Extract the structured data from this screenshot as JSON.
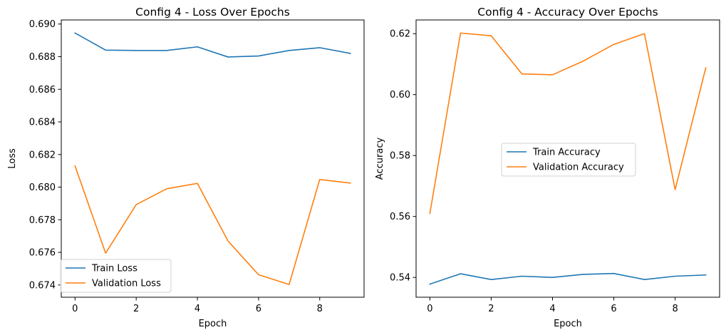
{
  "chart_data": [
    {
      "type": "line",
      "title": "Config 4 - Loss Over Epochs",
      "xlabel": "Epoch",
      "ylabel": "Loss",
      "x": [
        0,
        1,
        2,
        3,
        4,
        5,
        6,
        7,
        8,
        9
      ],
      "xlim": [
        -0.45,
        9.45
      ],
      "ylim": [
        0.67325,
        0.69025
      ],
      "xticks": [
        0,
        2,
        4,
        6,
        8
      ],
      "yticks": [
        0.674,
        0.676,
        0.678,
        0.68,
        0.682,
        0.684,
        0.686,
        0.688,
        0.69
      ],
      "ytick_labels": [
        "0.674",
        "0.676",
        "0.678",
        "0.680",
        "0.682",
        "0.684",
        "0.686",
        "0.688",
        "0.690"
      ],
      "grid": false,
      "legend_position": "lower-left",
      "series": [
        {
          "name": "Train Loss",
          "color": "#1f77b4",
          "values": [
            0.68945,
            0.6884,
            0.68838,
            0.68838,
            0.6886,
            0.68798,
            0.68804,
            0.68838,
            0.68855,
            0.6882
          ]
        },
        {
          "name": "Validation Loss",
          "color": "#ff7f0e",
          "values": [
            0.6813,
            0.67595,
            0.67893,
            0.6799,
            0.68023,
            0.6767,
            0.67463,
            0.67403,
            0.68047,
            0.68025
          ]
        }
      ]
    },
    {
      "type": "line",
      "title": "Config 4 - Accuracy Over Epochs",
      "xlabel": "Epoch",
      "ylabel": "Accuracy",
      "x": [
        0,
        1,
        2,
        3,
        4,
        5,
        6,
        7,
        8,
        9
      ],
      "xlim": [
        -0.45,
        9.45
      ],
      "ylim": [
        0.5335,
        0.6245
      ],
      "xticks": [
        0,
        2,
        4,
        6,
        8
      ],
      "yticks": [
        0.54,
        0.56,
        0.58,
        0.6,
        0.62
      ],
      "ytick_labels": [
        "0.54",
        "0.56",
        "0.58",
        "0.60",
        "0.62"
      ],
      "grid": false,
      "legend_position": "center-right",
      "series": [
        {
          "name": "Train Accuracy",
          "color": "#1f77b4",
          "values": [
            0.5378,
            0.5412,
            0.5393,
            0.5404,
            0.54,
            0.541,
            0.5413,
            0.5393,
            0.5404,
            0.5408
          ]
        },
        {
          "name": "Validation Accuracy",
          "color": "#ff7f0e",
          "values": [
            0.561,
            0.6202,
            0.6193,
            0.6068,
            0.6065,
            0.611,
            0.6165,
            0.62,
            0.5688,
            0.6088
          ]
        }
      ]
    }
  ]
}
